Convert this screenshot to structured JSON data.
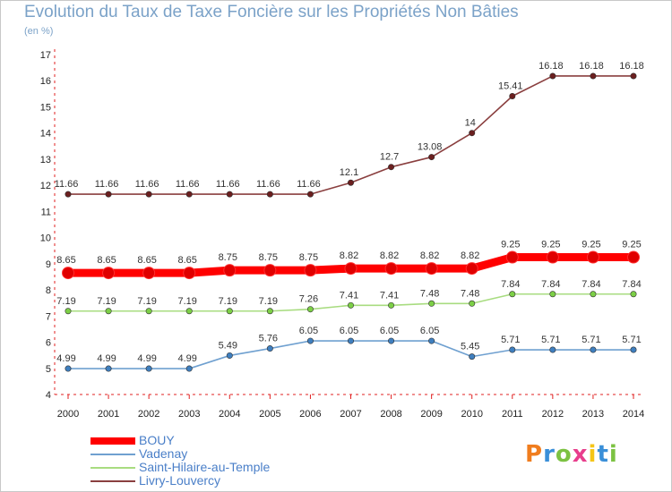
{
  "title": "Evolution du Taux de Taxe Foncière sur les Propriétés Non Bâties",
  "unit_label": "(en %)",
  "logo": {
    "text": "Proxiti",
    "colors": [
      "#f07d1e",
      "#3a8fd8",
      "#7cc242",
      "#e83e8c",
      "#f5c518",
      "#3a8fd8",
      "#7cc242"
    ]
  },
  "chart_data": {
    "type": "line",
    "title": "Evolution du Taux de Taxe Foncière sur les Propriétés Non Bâties",
    "ylabel": "(en %)",
    "xlabel": "",
    "ylim": [
      4,
      17
    ],
    "yticks": [
      4,
      5,
      6,
      7,
      8,
      9,
      10,
      11,
      12,
      13,
      14,
      15,
      16,
      17
    ],
    "grid": false,
    "legend": "bottom-left",
    "x": [
      "2000",
      "2001",
      "2002",
      "2003",
      "2004",
      "2005",
      "2006",
      "2007",
      "2008",
      "2009",
      "2010",
      "2011",
      "2012",
      "2013",
      "2014"
    ],
    "series": [
      {
        "name": "BOUY",
        "color": "#ff0000",
        "marker": "#e00000",
        "bold": true,
        "values": [
          8.65,
          8.65,
          8.65,
          8.65,
          8.75,
          8.75,
          8.75,
          8.82,
          8.82,
          8.82,
          8.82,
          9.25,
          9.25,
          9.25,
          9.25
        ],
        "labels": [
          "8.65",
          "8.65",
          "8.65",
          "8.65",
          "8.75",
          "8.75",
          "8.75",
          "8.82",
          "8.82",
          "8.82",
          "8.82",
          "9.25",
          "9.25",
          "9.25",
          "9.25"
        ]
      },
      {
        "name": "Vadenay",
        "color": "#6fa0d0",
        "marker": "#3f7fbf",
        "bold": false,
        "values": [
          4.99,
          4.99,
          4.99,
          4.99,
          5.49,
          5.76,
          6.05,
          6.05,
          6.05,
          6.05,
          5.45,
          5.71,
          5.71,
          5.71,
          5.71
        ],
        "labels": [
          "4.99",
          "4.99",
          "4.99",
          "4.99",
          "5.49",
          "5.76",
          "6.05",
          "6.05",
          "6.05",
          "6.05",
          "5.45",
          "5.71",
          "5.71",
          "5.71",
          "5.71"
        ]
      },
      {
        "name": "Saint-Hilaire-au-Temple",
        "color": "#a8dc80",
        "marker": "#7ccf46",
        "bold": false,
        "values": [
          7.19,
          7.19,
          7.19,
          7.19,
          7.19,
          7.19,
          7.26,
          7.41,
          7.41,
          7.48,
          7.48,
          7.84,
          7.84,
          7.84,
          7.84
        ],
        "labels": [
          "7.19",
          "7.19",
          "7.19",
          "7.19",
          "7.19",
          "7.19",
          "7.26",
          "7.41",
          "7.41",
          "7.48",
          "7.48",
          "7.84",
          "7.84",
          "7.84",
          "7.84"
        ]
      },
      {
        "name": "Livry-Louvercy",
        "color": "#8a3f3f",
        "marker": "#6b1f1f",
        "bold": false,
        "values": [
          11.66,
          11.66,
          11.66,
          11.66,
          11.66,
          11.66,
          11.66,
          12.1,
          12.7,
          13.08,
          14,
          15.41,
          16.18,
          16.18,
          16.18
        ],
        "labels": [
          "11.66",
          "11.66",
          "11.66",
          "11.66",
          "11.66",
          "11.66",
          "11.66",
          "12.1",
          "12.7",
          "13.08",
          "14",
          "15.41",
          "16.18",
          "16.18",
          "16.18"
        ]
      }
    ]
  }
}
